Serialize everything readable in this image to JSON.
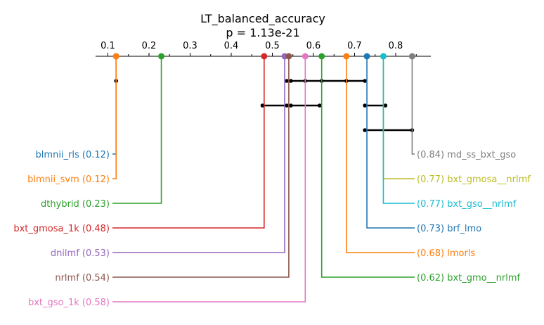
{
  "chart_data": {
    "type": "critical-difference",
    "title": "LT_balanced_accuracy",
    "subtitle": "p = 1.13e-21",
    "xlim": [
      0.07,
      0.91
    ],
    "ticks": [
      "0.1",
      "0.2",
      "0.3",
      "0.4",
      "0.5",
      "0.6",
      "0.7",
      "0.8"
    ],
    "tick_values": [
      0.1,
      0.2,
      0.3,
      0.4,
      0.5,
      0.6,
      0.7,
      0.8
    ],
    "methods_left": [
      {
        "name": "blmnii_rls",
        "value": 0.12,
        "label": "blmnii_rls (0.12)",
        "color": "#1f77b4"
      },
      {
        "name": "blmnii_svm",
        "value": 0.12,
        "label": "blmnii_svm (0.12)",
        "color": "#ff7f0e"
      },
      {
        "name": "dthybrid",
        "value": 0.23,
        "label": "dthybrid (0.23)",
        "color": "#2ca02c"
      },
      {
        "name": "bxt_gmosa_1k",
        "value": 0.48,
        "label": "bxt_gmosa_1k (0.48)",
        "color": "#d62728"
      },
      {
        "name": "dnilmf",
        "value": 0.53,
        "label": "dnilmf (0.53)",
        "color": "#9467bd"
      },
      {
        "name": "nrlmf",
        "value": 0.54,
        "label": "nrlmf (0.54)",
        "color": "#8c564b"
      },
      {
        "name": "bxt_gso_1k",
        "value": 0.58,
        "label": "bxt_gso_1k (0.58)",
        "color": "#e377c2"
      }
    ],
    "methods_right": [
      {
        "name": "md_ss_bxt_gso",
        "value": 0.84,
        "label": "(0.84) md_ss_bxt_gso",
        "color": "#7f7f7f"
      },
      {
        "name": "bxt_gmosa__nrlmf",
        "value": 0.77,
        "label": "(0.77) bxt_gmosa__nrlmf",
        "color": "#bcbd22"
      },
      {
        "name": "bxt_gso__nrlmf",
        "value": 0.77,
        "label": "(0.77) bxt_gso__nrlmf",
        "color": "#17becf"
      },
      {
        "name": "brf_lmo",
        "value": 0.73,
        "label": "(0.73) brf_lmo",
        "color": "#1f77b4"
      },
      {
        "name": "lmorls",
        "value": 0.68,
        "label": "(0.68) lmorls",
        "color": "#ff7f0e"
      },
      {
        "name": "bxt_gmo__nrlmf",
        "value": 0.62,
        "label": "(0.62) bxt_gmo__nrlmf",
        "color": "#2ca02c"
      }
    ],
    "cliques": [
      [
        0.12,
        0.12
      ],
      [
        0.535,
        0.725
      ],
      [
        0.476,
        0.615
      ],
      [
        0.725,
        0.775
      ],
      [
        0.725,
        0.84
      ]
    ],
    "clique_members": [
      [
        0.12
      ],
      [
        0.535,
        0.545,
        0.58,
        0.62,
        0.68,
        0.725
      ],
      [
        0.476,
        0.535,
        0.545,
        0.615
      ],
      [
        0.725,
        0.775
      ],
      [
        0.725,
        0.84
      ]
    ]
  }
}
